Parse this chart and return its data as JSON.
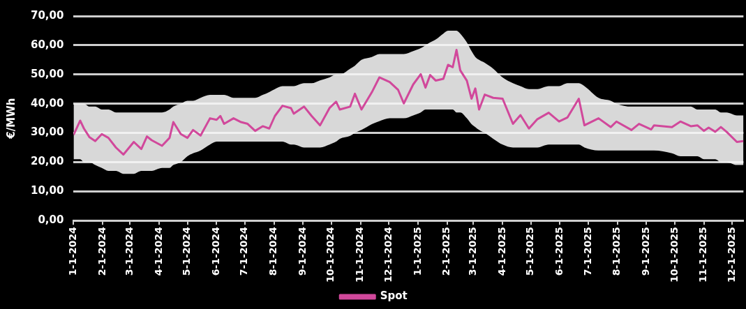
{
  "chart_data": {
    "type": "line",
    "ylabel": "€/MWh",
    "grid": "y",
    "legend": "bottom",
    "marker": "none",
    "line_style": "solid",
    "xlim": [
      "2024-01-01",
      "2025-12-13"
    ],
    "xticks": [
      {
        "value": "2024-01-01",
        "label": "1-1-2024"
      },
      {
        "value": "2024-02-01",
        "label": "2-1-2024"
      },
      {
        "value": "2024-03-01",
        "label": "3-1-2024"
      },
      {
        "value": "2024-04-01",
        "label": "4-1-2024"
      },
      {
        "value": "2024-05-01",
        "label": "5-1-2024"
      },
      {
        "value": "2024-06-01",
        "label": "6-1-2024"
      },
      {
        "value": "2024-07-01",
        "label": "7-1-2024"
      },
      {
        "value": "2024-08-01",
        "label": "8-1-2024"
      },
      {
        "value": "2024-09-01",
        "label": "9-1-2024"
      },
      {
        "value": "2024-10-01",
        "label": "10-1-2024"
      },
      {
        "value": "2024-11-01",
        "label": "11-1-2024"
      },
      {
        "value": "2024-12-01",
        "label": "12-1-2024"
      },
      {
        "value": "2025-01-01",
        "label": "1-1-2025"
      },
      {
        "value": "2025-02-01",
        "label": "2-1-2025"
      },
      {
        "value": "2025-03-01",
        "label": "3-1-2025"
      },
      {
        "value": "2025-04-01",
        "label": "4-1-2025"
      },
      {
        "value": "2025-05-01",
        "label": "5-1-2025"
      },
      {
        "value": "2025-06-01",
        "label": "6-1-2025"
      },
      {
        "value": "2025-07-01",
        "label": "7-1-2025"
      },
      {
        "value": "2025-08-01",
        "label": "8-1-2025"
      },
      {
        "value": "2025-09-01",
        "label": "9-1-2025"
      },
      {
        "value": "2025-10-01",
        "label": "10-1-2025"
      },
      {
        "value": "2025-11-01",
        "label": "11-1-2025"
      },
      {
        "value": "2025-12-01",
        "label": "12-1-2025"
      }
    ],
    "ylim": [
      0,
      70
    ],
    "yticks": [
      {
        "value": 0,
        "label": "0,00"
      },
      {
        "value": 10,
        "label": "10,00"
      },
      {
        "value": 20,
        "label": "20,00"
      },
      {
        "value": 30,
        "label": "30,00"
      },
      {
        "value": 40,
        "label": "40,00"
      },
      {
        "value": 50,
        "label": "50,00"
      },
      {
        "value": 60,
        "label": "60,00"
      },
      {
        "value": 70,
        "label": "70,00"
      }
    ],
    "x": [
      "2024-01-01",
      "2024-01-08",
      "2024-01-12",
      "2024-01-18",
      "2024-01-24",
      "2024-01-31",
      "2024-02-07",
      "2024-02-15",
      "2024-02-23",
      "2024-03-05",
      "2024-03-13",
      "2024-03-19",
      "2024-03-24",
      "2024-04-04",
      "2024-04-12",
      "2024-04-16",
      "2024-04-24",
      "2024-05-01",
      "2024-05-07",
      "2024-05-15",
      "2024-05-25",
      "2024-06-01",
      "2024-06-05",
      "2024-06-09",
      "2024-06-19",
      "2024-06-27",
      "2024-07-04",
      "2024-07-12",
      "2024-07-20",
      "2024-07-27",
      "2024-08-02",
      "2024-08-10",
      "2024-08-19",
      "2024-08-22",
      "2024-09-02",
      "2024-09-10",
      "2024-09-19",
      "2024-09-29",
      "2024-10-06",
      "2024-10-10",
      "2024-10-21",
      "2024-10-26",
      "2024-11-02",
      "2024-11-13",
      "2024-11-21",
      "2024-12-02",
      "2024-12-11",
      "2024-12-17",
      "2024-12-27",
      "2025-01-04",
      "2025-01-09",
      "2025-01-14",
      "2025-01-20",
      "2025-01-28",
      "2025-02-02",
      "2025-02-07",
      "2025-02-11",
      "2025-02-15",
      "2025-02-22",
      "2025-02-27",
      "2025-03-03",
      "2025-03-07",
      "2025-03-13",
      "2025-03-22",
      "2025-04-01",
      "2025-04-12",
      "2025-04-20",
      "2025-04-29",
      "2025-05-08",
      "2025-05-20",
      "2025-05-31",
      "2025-06-09",
      "2025-06-21",
      "2025-06-27",
      "2025-07-12",
      "2025-07-25",
      "2025-07-31",
      "2025-08-16",
      "2025-08-24",
      "2025-09-06",
      "2025-09-09",
      "2025-09-28",
      "2025-10-07",
      "2025-10-18",
      "2025-10-25",
      "2025-11-01",
      "2025-11-06",
      "2025-11-13",
      "2025-11-19",
      "2025-11-25",
      "2025-12-06",
      "2025-12-13"
    ],
    "series": [
      {
        "name": "Spot",
        "color": "#d1489b",
        "values": [
          29.3,
          34.2,
          31.5,
          28.5,
          27.2,
          29.6,
          28.3,
          25.0,
          22.6,
          26.9,
          24.5,
          28.8,
          27.5,
          25.6,
          28.3,
          33.7,
          29.6,
          28.3,
          31.0,
          29.1,
          35.0,
          34.5,
          35.8,
          33.1,
          35.0,
          33.7,
          33.1,
          30.7,
          32.3,
          31.5,
          35.8,
          39.3,
          38.5,
          36.6,
          39.0,
          35.8,
          32.6,
          38.5,
          40.7,
          38.0,
          39.0,
          43.4,
          38.0,
          43.9,
          49.0,
          47.4,
          44.7,
          40.1,
          46.6,
          50.1,
          45.5,
          49.8,
          47.9,
          48.5,
          53.3,
          52.5,
          58.4,
          51.4,
          47.9,
          41.7,
          45.2,
          38.0,
          43.1,
          42.0,
          41.7,
          33.1,
          36.1,
          31.5,
          34.7,
          36.9,
          33.9,
          35.3,
          41.7,
          32.6,
          35.0,
          32.0,
          33.9,
          31.0,
          33.1,
          31.2,
          32.6,
          32.0,
          33.9,
          32.3,
          32.6,
          30.7,
          31.8,
          30.4,
          32.0,
          30.4,
          26.9,
          27.2
        ],
        "lower": [
          21,
          21,
          20,
          20,
          19,
          18,
          17,
          17,
          16,
          16,
          17,
          17,
          17,
          18,
          18,
          19,
          20,
          22,
          23,
          24,
          26,
          27,
          27,
          27,
          27,
          27,
          27,
          27,
          27,
          27,
          27,
          27,
          26,
          26,
          25,
          25,
          25,
          26,
          27,
          28,
          29,
          30,
          31,
          33,
          34,
          35,
          35,
          35,
          36,
          37,
          38,
          38,
          38,
          38,
          38,
          38,
          37,
          37,
          35,
          33,
          32,
          31,
          30,
          28,
          26,
          25,
          25,
          25,
          25,
          26,
          26,
          26,
          26,
          25,
          24,
          24,
          24,
          24,
          24,
          24,
          24,
          23,
          22,
          22,
          22,
          21,
          21,
          21,
          20,
          20,
          19,
          19
        ],
        "upper": [
          40,
          40,
          40,
          39,
          39,
          38,
          38,
          37,
          37,
          37,
          37,
          37,
          37,
          37,
          38,
          39,
          40,
          41,
          41,
          42,
          43,
          43,
          43,
          43,
          42,
          42,
          42,
          42,
          43,
          44,
          45,
          46,
          46,
          46,
          47,
          47,
          48,
          49,
          50,
          50,
          52,
          53,
          55,
          56,
          57,
          57,
          57,
          57,
          58,
          59,
          60,
          61,
          62,
          64,
          65,
          65,
          65,
          64,
          61,
          58,
          56,
          55,
          54,
          52,
          49,
          47,
          46,
          45,
          45,
          46,
          46,
          47,
          47,
          46,
          42,
          41,
          40,
          39,
          39,
          39,
          39,
          39,
          39,
          39,
          38,
          38,
          38,
          38,
          37,
          37,
          36,
          36
        ]
      }
    ]
  }
}
